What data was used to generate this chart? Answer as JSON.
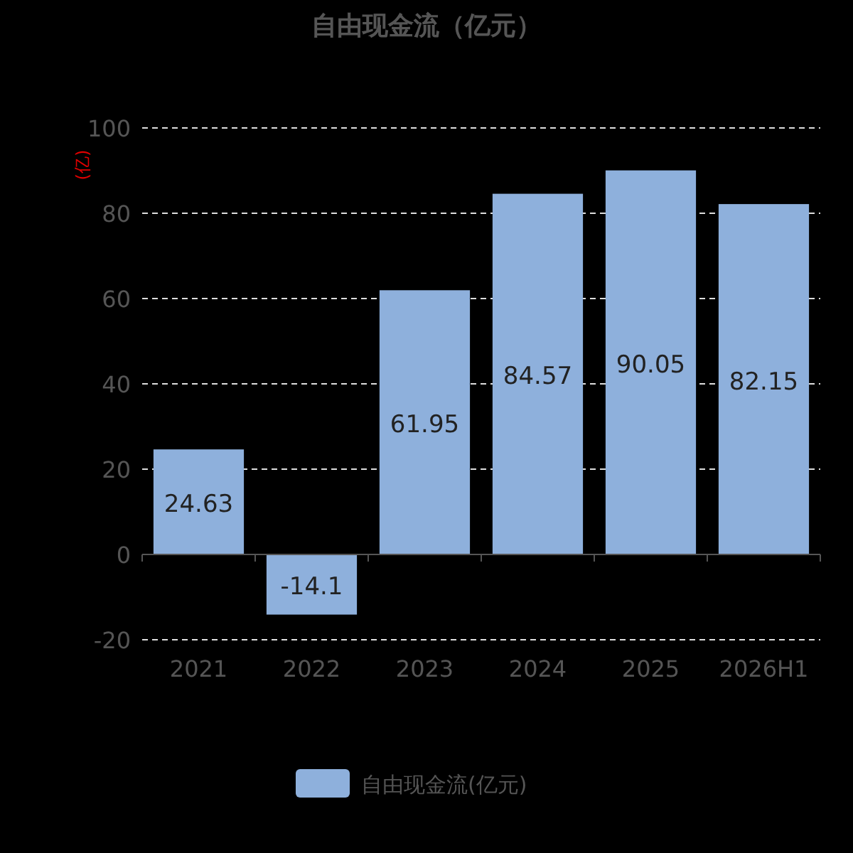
{
  "chart_data": {
    "type": "bar",
    "title": "自由现金流（亿元）",
    "ylabel": "(亿)",
    "categories": [
      "2021",
      "2022",
      "2023",
      "2024",
      "2025",
      "2026H1"
    ],
    "series": [
      {
        "name": "自由现金流(亿元)",
        "color": "#8eb0dc",
        "values": [
          24.63,
          -14.1,
          61.95,
          84.57,
          90.05,
          82.15
        ]
      }
    ],
    "ylim": [
      -20,
      100
    ],
    "yticks": [
      -20,
      0,
      20,
      40,
      60,
      80,
      100
    ],
    "grid": "y",
    "legend": "bottom",
    "data_labels": true
  }
}
